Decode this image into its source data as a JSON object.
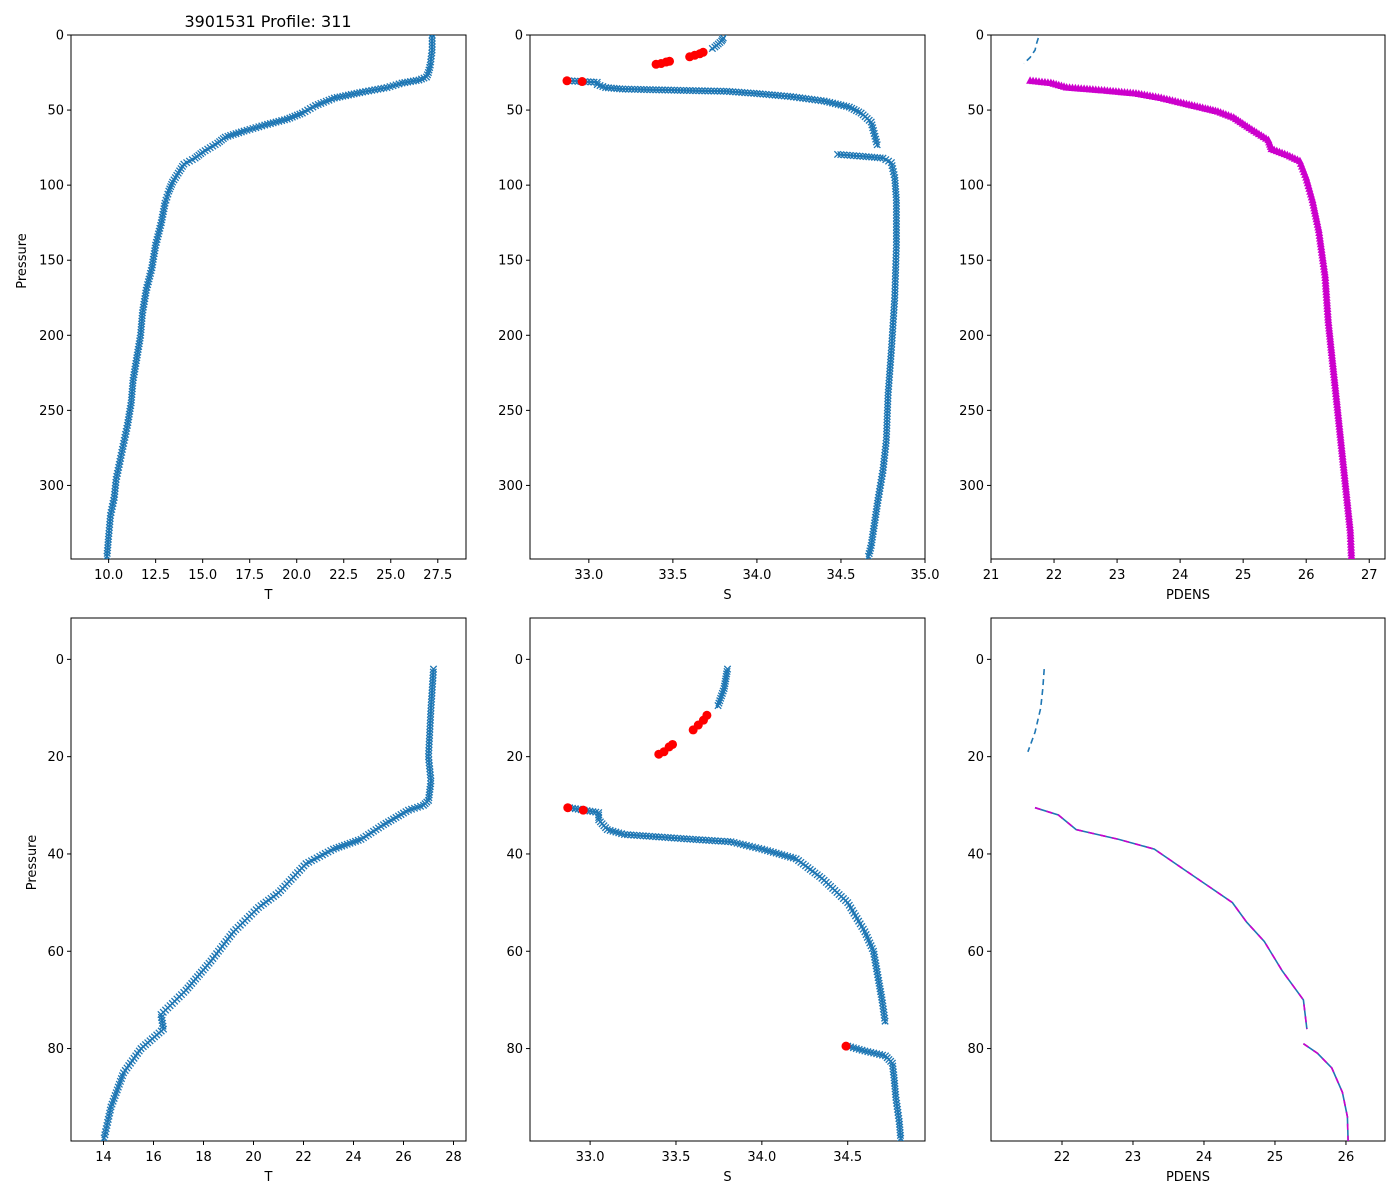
{
  "figure_title": "3901531 Profile: 311",
  "colors": {
    "line": "#1f77b4",
    "flag": "#ff0000",
    "density": "#cc00cc",
    "axis": "#000000"
  },
  "chart_data": [
    {
      "id": "temp-full",
      "type": "line",
      "xlabel": "T",
      "ylabel": "Pressure",
      "xlim": [
        8.0,
        29.0
      ],
      "ylim": [
        0,
        349
      ],
      "xticks": [
        "10.0",
        "12.5",
        "15.0",
        "17.5",
        "20.0",
        "22.5",
        "25.0",
        "27.5"
      ],
      "xtick_values": [
        10.0,
        12.5,
        15.0,
        17.5,
        20.0,
        22.5,
        25.0,
        27.5
      ],
      "yticks": [
        "0",
        "50",
        "100",
        "150",
        "200",
        "250",
        "300"
      ],
      "ytick_values": [
        0,
        50,
        100,
        150,
        200,
        250,
        300
      ],
      "series": [
        {
          "name": "T",
          "style": "line-x",
          "x": [
            27.2,
            27.2,
            27.1,
            27.0,
            26.9,
            26.5,
            25.6,
            24.8,
            23.5,
            22.0,
            21.0,
            20.3,
            19.5,
            18.3,
            17.2,
            16.2,
            15.8,
            15.0,
            14.6,
            14.0,
            13.7,
            13.4,
            13.2,
            13.0,
            12.8,
            12.5,
            12.3,
            12.0,
            11.8,
            11.7,
            11.5,
            11.3,
            11.2,
            11.0,
            10.8,
            10.6,
            10.4,
            10.3,
            10.1,
            10.0,
            9.9
          ],
          "y": [
            0,
            10,
            20,
            25,
            28,
            30,
            32,
            35,
            38,
            42,
            47,
            52,
            56,
            60,
            64,
            68,
            72,
            78,
            82,
            86,
            92,
            98,
            104,
            112,
            125,
            140,
            155,
            170,
            185,
            200,
            215,
            230,
            245,
            260,
            272,
            284,
            296,
            308,
            320,
            334,
            349
          ]
        }
      ]
    },
    {
      "id": "sal-full",
      "type": "line",
      "xlabel": "S",
      "ylabel": "",
      "xlim": [
        32.65,
        35.0
      ],
      "ylim": [
        0,
        349
      ],
      "xticks": [
        "33.0",
        "33.5",
        "34.0",
        "34.5",
        "35.0"
      ],
      "xtick_values": [
        33.0,
        33.5,
        34.0,
        34.5,
        35.0
      ],
      "yticks": [
        "0",
        "50",
        "100",
        "150",
        "200",
        "250",
        "300"
      ],
      "ytick_values": [
        0,
        50,
        100,
        150,
        200,
        250,
        300
      ],
      "series": [
        {
          "name": "S upper",
          "style": "line-x",
          "x": [
            33.8,
            33.79,
            33.77,
            33.75,
            33.72
          ],
          "y": [
            2,
            4,
            6,
            8,
            10
          ]
        },
        {
          "name": "S main",
          "style": "line-x",
          "x": [
            32.88,
            33.05,
            33.05,
            33.1,
            33.2,
            33.4,
            33.6,
            33.82,
            34.0,
            34.2,
            34.4,
            34.55,
            34.62,
            34.68,
            34.72
          ],
          "y": [
            30.5,
            31.5,
            33,
            35,
            36,
            36.5,
            37,
            37.5,
            39,
            41,
            44,
            48,
            52,
            58,
            75
          ]
        },
        {
          "name": "S deep",
          "style": "line-x",
          "x": [
            34.48,
            34.65,
            34.75,
            34.8,
            34.82,
            34.83,
            34.83,
            34.82,
            34.8,
            34.78,
            34.77,
            34.75,
            34.72,
            34.7,
            34.68,
            34.66
          ],
          "y": [
            79.5,
            81,
            82,
            85,
            95,
            110,
            140,
            175,
            210,
            240,
            270,
            290,
            310,
            325,
            340,
            349
          ]
        },
        {
          "name": "S flagged",
          "style": "dots",
          "x": [
            32.87,
            32.96,
            33.4,
            33.43,
            33.46,
            33.48,
            33.6,
            33.63,
            33.66,
            33.68
          ],
          "y": [
            30.5,
            31,
            19.5,
            19,
            18,
            17.5,
            14.5,
            13.5,
            12.5,
            11.5
          ]
        }
      ]
    },
    {
      "id": "dens-full",
      "type": "line",
      "xlabel": "PDENS",
      "ylabel": "",
      "xlim": [
        21.0,
        27.25
      ],
      "ylim": [
        0,
        349
      ],
      "xticks": [
        "21",
        "22",
        "23",
        "24",
        "25",
        "26",
        "27"
      ],
      "xtick_values": [
        21,
        22,
        23,
        24,
        25,
        26,
        27
      ],
      "yticks": [
        "0",
        "50",
        "100",
        "150",
        "200",
        "250",
        "300"
      ],
      "ytick_values": [
        0,
        50,
        100,
        150,
        200,
        250,
        300
      ],
      "series": [
        {
          "name": "PDENS upper",
          "style": "dashed",
          "x": [
            21.75,
            21.72,
            21.7,
            21.62,
            21.52
          ],
          "y": [
            2,
            6,
            10,
            15,
            19
          ]
        },
        {
          "name": "PDENS main",
          "style": "line-tri",
          "x": [
            21.62,
            21.95,
            22.2,
            22.8,
            23.3,
            23.7,
            24.1,
            24.4,
            24.6,
            24.85,
            25.1,
            25.4,
            25.45,
            25.7,
            25.9,
            26.0,
            26.1,
            26.2,
            26.3,
            26.35,
            26.4,
            26.45,
            26.5,
            26.55,
            26.6,
            26.65,
            26.7,
            26.72
          ],
          "y": [
            30.5,
            32,
            35,
            37,
            39,
            42,
            46,
            49,
            51,
            55,
            62,
            70,
            76,
            80,
            84,
            95,
            110,
            130,
            160,
            190,
            210,
            230,
            250,
            270,
            290,
            310,
            330,
            349
          ]
        }
      ]
    },
    {
      "id": "temp-zoom",
      "type": "line",
      "xlabel": "T",
      "ylabel": "Pressure",
      "xlim": [
        12.7,
        28.5
      ],
      "ylim": [
        -8.5,
        99
      ],
      "xticks": [
        "14",
        "16",
        "18",
        "20",
        "22",
        "24",
        "26",
        "28"
      ],
      "xtick_values": [
        14,
        16,
        18,
        20,
        22,
        24,
        26,
        28
      ],
      "yticks": [
        "0",
        "20",
        "40",
        "60",
        "80"
      ],
      "ytick_values": [
        0,
        20,
        40,
        60,
        80
      ],
      "series": [
        {
          "name": "T",
          "style": "line-x",
          "x": [
            27.2,
            27.1,
            27.0,
            27.1,
            27.0,
            26.8,
            26.2,
            25.2,
            24.3,
            23.2,
            22.1,
            21.0,
            20.2,
            19.2,
            18.3,
            17.3,
            16.3,
            16.4,
            15.5,
            14.8,
            14.3,
            14.0
          ],
          "y": [
            2,
            10,
            20,
            25,
            29,
            30,
            31,
            34,
            37,
            39,
            42,
            48,
            51,
            56,
            62,
            68,
            73,
            76,
            80,
            85,
            92,
            99
          ]
        }
      ]
    },
    {
      "id": "sal-zoom",
      "type": "line",
      "xlabel": "S",
      "ylabel": "",
      "xlim": [
        32.65,
        34.95
      ],
      "ylim": [
        -8.5,
        99
      ],
      "xticks": [
        "33.0",
        "33.5",
        "34.0",
        "34.5"
      ],
      "xtick_values": [
        33.0,
        33.5,
        34.0,
        34.5
      ],
      "yticks": [
        "0",
        "20",
        "40",
        "60",
        "80"
      ],
      "ytick_values": [
        0,
        20,
        40,
        60,
        80
      ],
      "series": [
        {
          "name": "S upper",
          "style": "line-x",
          "x": [
            33.8,
            33.79,
            33.78,
            33.76,
            33.74
          ],
          "y": [
            2,
            4,
            6,
            8,
            10
          ]
        },
        {
          "name": "S main",
          "style": "line-x",
          "x": [
            32.88,
            33.05,
            33.05,
            33.1,
            33.2,
            33.4,
            33.6,
            33.82,
            34.0,
            34.2,
            34.35,
            34.5,
            34.6,
            34.65,
            34.68,
            34.7,
            34.72
          ],
          "y": [
            30.5,
            31.5,
            33,
            35,
            36,
            36.5,
            37,
            37.5,
            39,
            41,
            45,
            50,
            56,
            60,
            66,
            70,
            75
          ]
        },
        {
          "name": "S deep",
          "style": "line-x",
          "x": [
            34.5,
            34.6,
            34.72,
            34.76,
            34.77,
            34.78,
            34.8,
            34.81
          ],
          "y": [
            79.5,
            80.5,
            81.5,
            83,
            86,
            90,
            95,
            99
          ]
        },
        {
          "name": "S flagged",
          "style": "dots",
          "x": [
            32.87,
            32.96,
            33.4,
            33.43,
            33.46,
            33.48,
            33.6,
            33.63,
            33.66,
            33.68,
            34.49
          ],
          "y": [
            30.5,
            31,
            19.5,
            19,
            18,
            17.5,
            14.5,
            13.5,
            12.5,
            11.5,
            79.5
          ]
        }
      ]
    },
    {
      "id": "dens-zoom",
      "type": "line",
      "xlabel": "PDENS",
      "ylabel": "",
      "xlim": [
        21.0,
        26.55
      ],
      "ylim": [
        -8.5,
        99
      ],
      "xticks": [
        "22",
        "23",
        "24",
        "25",
        "26"
      ],
      "xtick_values": [
        22,
        23,
        24,
        25,
        26
      ],
      "yticks": [
        "0",
        "20",
        "40",
        "60",
        "80"
      ],
      "ytick_values": [
        0,
        20,
        40,
        60,
        80
      ],
      "series": [
        {
          "name": "PDENS upper",
          "style": "dashed",
          "x": [
            21.75,
            21.73,
            21.7,
            21.62,
            21.52
          ],
          "y": [
            2,
            6,
            10,
            15,
            19
          ]
        },
        {
          "name": "PDENS main",
          "style": "dashed-dual",
          "x": [
            21.62,
            21.95,
            22.2,
            22.8,
            23.3,
            23.7,
            24.1,
            24.4,
            24.6,
            24.85,
            25.1,
            25.4,
            25.45
          ],
          "y": [
            30.5,
            32,
            35,
            37,
            39,
            43,
            47,
            50,
            54,
            58,
            64,
            70,
            76
          ]
        },
        {
          "name": "PDENS deep",
          "style": "dashed-dual",
          "x": [
            25.4,
            25.6,
            25.8,
            25.95,
            26.02,
            26.03
          ],
          "y": [
            79,
            81,
            84,
            89,
            94,
            99
          ]
        }
      ]
    }
  ]
}
